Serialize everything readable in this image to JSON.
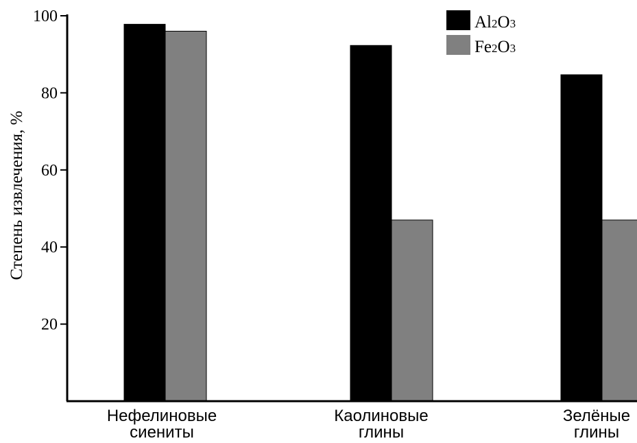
{
  "chart_data": {
    "type": "bar",
    "categories": [
      [
        "Нефелиновые",
        "сиениты"
      ],
      [
        "Каолиновые",
        "глины"
      ],
      [
        "Зелёные",
        "глины"
      ]
    ],
    "series": [
      {
        "name": "Al2O3",
        "label_main": "Al",
        "label_sub1": "2",
        "label_mid": "O",
        "label_sub2": "3",
        "color": "#000000",
        "values": [
          97.8,
          92.3,
          84.7
        ]
      },
      {
        "name": "Fe2O3",
        "label_main": "Fe",
        "label_sub1": "2",
        "label_mid": "O",
        "label_sub2": "3",
        "color": "#808080",
        "values": [
          96.0,
          47.0,
          47.0
        ]
      }
    ],
    "ylabel": "Степень извлечения, %",
    "xlabel": "",
    "title": "",
    "ylim": [
      0,
      100
    ],
    "yticks": [
      20,
      40,
      60,
      80,
      100
    ],
    "grid": false,
    "legend_position": "top-right"
  }
}
